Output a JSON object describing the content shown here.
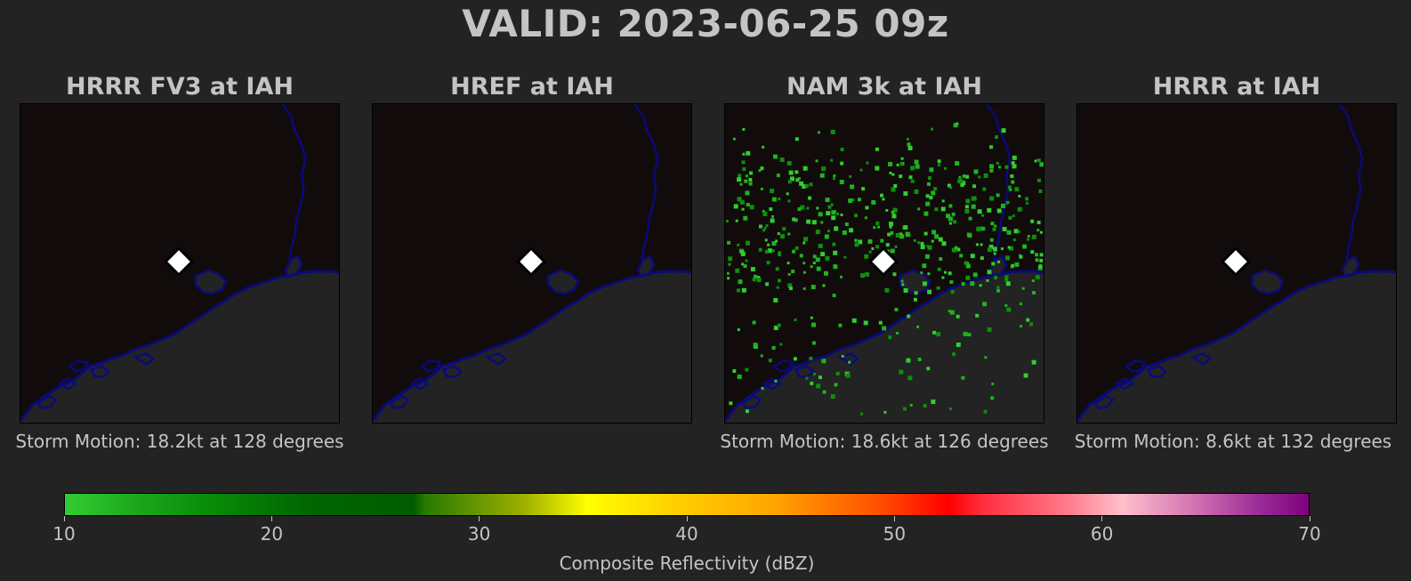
{
  "title": "VALID: 2023-06-25 09z",
  "panels": [
    {
      "title": "HRRR FV3 at IAH",
      "motion": "Storm Motion: 18.2kt at 128 degrees",
      "has_echoes": false
    },
    {
      "title": "HREF at IAH",
      "motion": "",
      "has_echoes": false
    },
    {
      "title": "NAM 3k at IAH",
      "motion": "Storm Motion: 18.6kt at 126 degrees",
      "has_echoes": true
    },
    {
      "title": "HRRR at IAH",
      "motion": "Storm Motion: 8.6kt at 132 degrees",
      "has_echoes": false
    }
  ],
  "map": {
    "land_color": "#110c0b",
    "water_color": "#232323",
    "coastline_color": "#0a0a7a",
    "station_marker": "white-diamond",
    "echo_colors": [
      "#32cd32",
      "#1fb31f",
      "#0e8f0e"
    ]
  },
  "colorbar": {
    "label": "Composite Reflectivity (dBZ)",
    "min": 10,
    "max": 70,
    "ticks": [
      "10",
      "20",
      "30",
      "40",
      "50",
      "60",
      "70"
    ]
  }
}
